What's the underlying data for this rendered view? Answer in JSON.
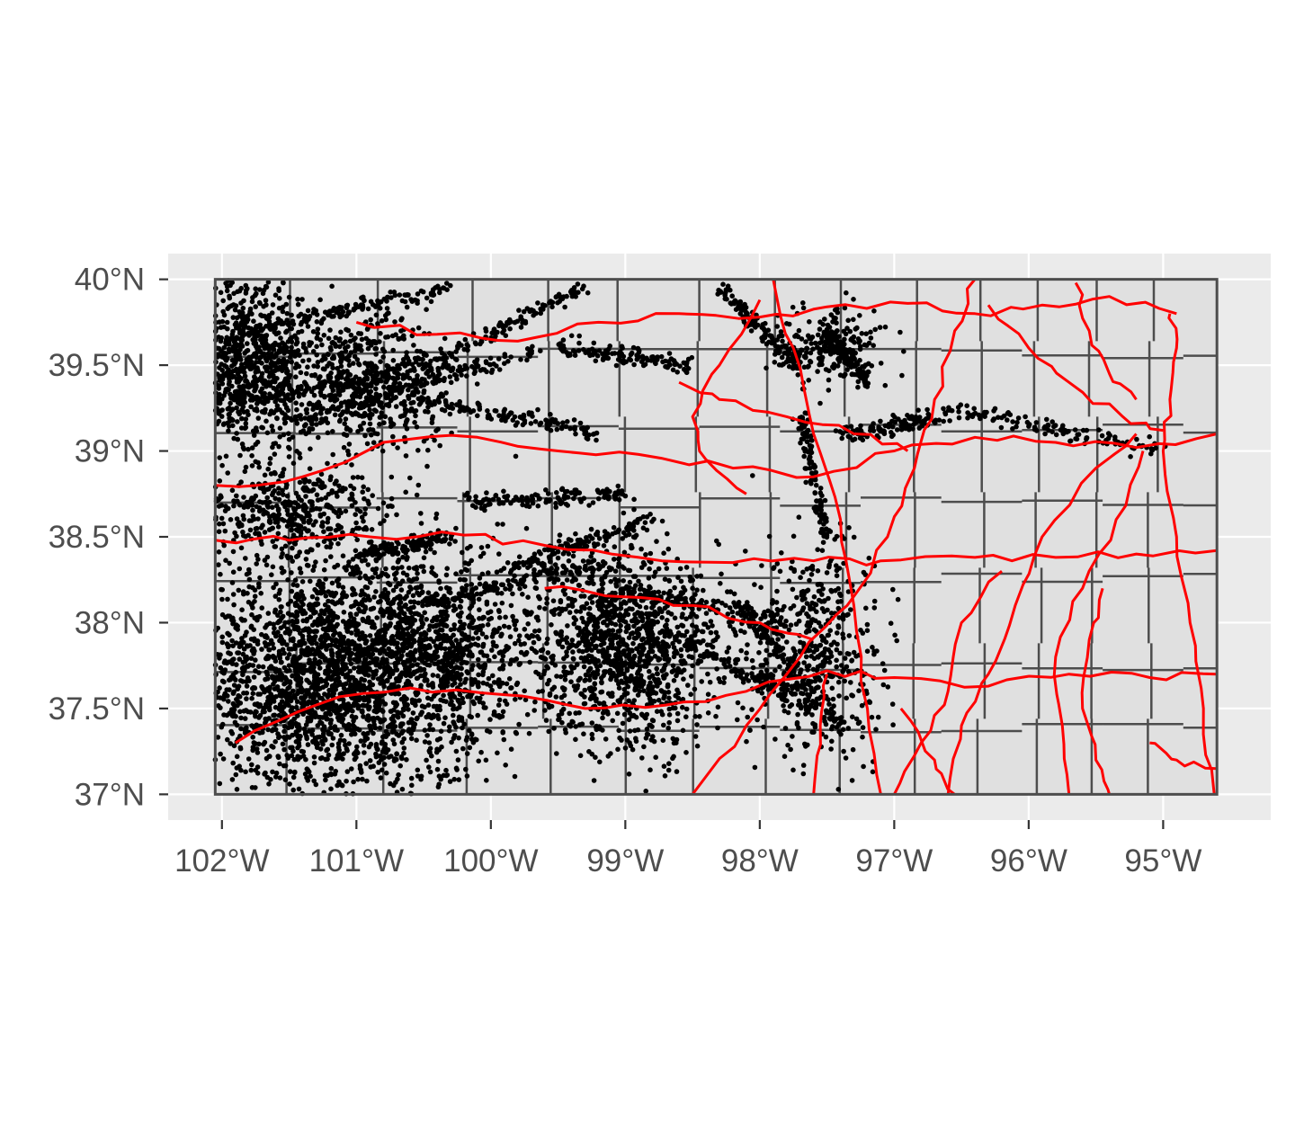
{
  "map": {
    "projection": "longitude-latitude",
    "background_panel_color": "#ebebeb",
    "gridline_color": "#ffffff",
    "county_fill_color": "#e0e0e0",
    "county_border_color": "#4d4d4d",
    "road_color": "#ff0000",
    "point_color": "#000000",
    "lon_range": [
      -102.4,
      -94.2
    ],
    "lat_range": [
      36.85,
      40.15
    ],
    "state_bounds": {
      "west": -102.05,
      "east": -94.6,
      "south": 37.0,
      "north": 40.0
    },
    "x_axis": {
      "ticks": [
        -102,
        -101,
        -100,
        -99,
        -98,
        -97,
        -96,
        -95
      ],
      "labels": [
        "102°W",
        "101°W",
        "100°W",
        "99°W",
        "98°W",
        "97°W",
        "96°W",
        "95°W"
      ]
    },
    "y_axis": {
      "ticks": [
        40,
        39.5,
        39,
        38.5,
        38,
        37.5,
        37
      ],
      "labels": [
        "40°N",
        "39.5°N",
        "39°N",
        "38.5°N",
        "38°N",
        "37.5°N",
        "37°N"
      ]
    },
    "county_lines_lon": [
      -101.48,
      -100.82,
      -100.17,
      -99.58,
      -99.03,
      -98.48,
      -97.92,
      -97.37,
      -96.84,
      -96.36,
      -95.94,
      -95.52,
      -95.08
    ],
    "county_lines_lat": [
      39.57,
      39.13,
      38.7,
      38.26,
      37.74,
      37.38
    ],
    "roads": [
      [
        [
          -102.05,
          38.48
        ],
        [
          -101.5,
          38.48
        ],
        [
          -100.9,
          38.5
        ],
        [
          -100.2,
          38.51
        ],
        [
          -99.6,
          38.45
        ],
        [
          -98.9,
          38.38
        ],
        [
          -98.2,
          38.35
        ],
        [
          -97.6,
          38.36
        ],
        [
          -97.1,
          38.36
        ],
        [
          -96.4,
          38.38
        ],
        [
          -95.8,
          38.38
        ],
        [
          -95.2,
          38.4
        ],
        [
          -94.6,
          38.42
        ]
      ],
      [
        [
          -102.05,
          38.8
        ],
        [
          -101.4,
          38.85
        ],
        [
          -100.8,
          39.05
        ],
        [
          -100.1,
          39.08
        ],
        [
          -99.5,
          39.0
        ],
        [
          -98.9,
          38.98
        ],
        [
          -98.2,
          38.9
        ],
        [
          -97.6,
          38.85
        ],
        [
          -97.0,
          39.0
        ],
        [
          -96.4,
          39.08
        ],
        [
          -95.8,
          39.05
        ],
        [
          -95.2,
          39.02
        ],
        [
          -94.6,
          39.1
        ]
      ],
      [
        [
          -101.0,
          39.75
        ],
        [
          -100.4,
          39.68
        ],
        [
          -99.8,
          39.64
        ],
        [
          -99.2,
          39.75
        ],
        [
          -98.6,
          39.8
        ],
        [
          -98.0,
          39.78
        ],
        [
          -97.5,
          39.84
        ],
        [
          -96.9,
          39.86
        ],
        [
          -96.4,
          39.8
        ],
        [
          -95.9,
          39.85
        ],
        [
          -95.4,
          39.9
        ],
        [
          -94.9,
          39.8
        ]
      ],
      [
        [
          -101.9,
          37.3
        ],
        [
          -101.3,
          37.52
        ],
        [
          -100.6,
          37.62
        ],
        [
          -99.9,
          37.58
        ],
        [
          -99.3,
          37.5
        ],
        [
          -98.7,
          37.52
        ],
        [
          -98.1,
          37.6
        ],
        [
          -97.5,
          37.72
        ],
        [
          -97.0,
          37.68
        ],
        [
          -96.3,
          37.63
        ],
        [
          -95.7,
          37.7
        ],
        [
          -95.1,
          37.68
        ],
        [
          -94.6,
          37.7
        ]
      ],
      [
        [
          -98.5,
          37.0
        ],
        [
          -98.1,
          37.4
        ],
        [
          -97.7,
          37.8
        ],
        [
          -97.35,
          38.1
        ],
        [
          -97.05,
          38.5
        ],
        [
          -96.85,
          38.9
        ],
        [
          -96.7,
          39.3
        ],
        [
          -96.55,
          39.7
        ],
        [
          -96.4,
          40.0
        ]
      ],
      [
        [
          -97.9,
          40.0
        ],
        [
          -97.75,
          39.6
        ],
        [
          -97.6,
          39.1
        ],
        [
          -97.4,
          38.6
        ],
        [
          -97.3,
          38.1
        ],
        [
          -97.2,
          37.5
        ],
        [
          -97.1,
          37.0
        ]
      ],
      [
        [
          -94.62,
          37.0
        ],
        [
          -94.7,
          37.5
        ],
        [
          -94.8,
          38.0
        ],
        [
          -94.9,
          38.5
        ],
        [
          -95.0,
          39.0
        ],
        [
          -94.95,
          39.3
        ],
        [
          -94.9,
          39.6
        ],
        [
          -94.95,
          39.8
        ]
      ],
      [
        [
          -95.7,
          37.0
        ],
        [
          -95.75,
          37.4
        ],
        [
          -95.8,
          37.8
        ],
        [
          -95.6,
          38.2
        ],
        [
          -95.35,
          38.6
        ],
        [
          -95.15,
          39.0
        ]
      ],
      [
        [
          -96.6,
          37.0
        ],
        [
          -96.5,
          37.4
        ],
        [
          -96.3,
          37.7
        ],
        [
          -96.1,
          38.1
        ],
        [
          -95.9,
          38.5
        ],
        [
          -95.5,
          38.9
        ],
        [
          -95.2,
          39.1
        ]
      ],
      [
        [
          -96.3,
          39.85
        ],
        [
          -96.0,
          39.6
        ],
        [
          -95.7,
          39.4
        ],
        [
          -95.3,
          39.2
        ],
        [
          -95.0,
          39.12
        ]
      ],
      [
        [
          -98.0,
          39.88
        ],
        [
          -98.3,
          39.5
        ],
        [
          -98.5,
          39.2
        ],
        [
          -98.4,
          38.95
        ],
        [
          -98.1,
          38.75
        ]
      ],
      [
        [
          -97.0,
          37.0
        ],
        [
          -96.8,
          37.3
        ],
        [
          -96.6,
          37.6
        ],
        [
          -96.5,
          38.0
        ],
        [
          -96.2,
          38.3
        ]
      ],
      [
        [
          -97.6,
          37.0
        ],
        [
          -97.55,
          37.4
        ],
        [
          -97.5,
          37.7
        ]
      ],
      [
        [
          -95.4,
          37.0
        ],
        [
          -95.5,
          37.2
        ],
        [
          -95.6,
          37.5
        ],
        [
          -95.55,
          37.9
        ],
        [
          -95.45,
          38.2
        ]
      ],
      [
        [
          -95.65,
          39.98
        ],
        [
          -95.55,
          39.7
        ],
        [
          -95.4,
          39.45
        ],
        [
          -95.2,
          39.3
        ]
      ],
      [
        [
          -99.6,
          38.2
        ],
        [
          -99.0,
          38.15
        ],
        [
          -98.5,
          38.1
        ],
        [
          -98.0,
          38.0
        ],
        [
          -97.6,
          37.9
        ]
      ],
      [
        [
          -98.6,
          39.4
        ],
        [
          -98.3,
          39.3
        ],
        [
          -97.8,
          39.2
        ],
        [
          -97.3,
          39.1
        ],
        [
          -96.9,
          39.0
        ]
      ],
      [
        [
          -96.95,
          37.5
        ],
        [
          -96.7,
          37.2
        ],
        [
          -96.55,
          37.0
        ]
      ],
      [
        [
          -95.1,
          37.3
        ],
        [
          -94.9,
          37.2
        ],
        [
          -94.6,
          37.15
        ]
      ]
    ],
    "point_clusters": [
      {
        "lon": -101.8,
        "lat": 39.5,
        "spread_lon": 0.25,
        "spread_lat": 0.25,
        "count": 900
      },
      {
        "lon": -100.9,
        "lat": 39.4,
        "spread_lon": 0.3,
        "spread_lat": 0.2,
        "count": 600
      },
      {
        "lon": -101.2,
        "lat": 37.7,
        "spread_lon": 0.55,
        "spread_lat": 0.35,
        "count": 2600
      },
      {
        "lon": -99.0,
        "lat": 37.85,
        "spread_lon": 0.35,
        "spread_lat": 0.3,
        "count": 1200
      },
      {
        "lon": -101.5,
        "lat": 38.65,
        "spread_lon": 0.35,
        "spread_lat": 0.12,
        "count": 400
      },
      {
        "lon": -97.6,
        "lat": 37.8,
        "spread_lon": 0.25,
        "spread_lat": 0.3,
        "count": 500
      },
      {
        "lon": -100.3,
        "lat": 37.9,
        "spread_lon": 0.35,
        "spread_lat": 0.25,
        "count": 600
      },
      {
        "lon": -97.5,
        "lat": 39.6,
        "spread_lon": 0.2,
        "spread_lat": 0.12,
        "count": 200
      }
    ],
    "point_streaks": [
      [
        [
          -101.8,
          39.7
        ],
        [
          -100.3,
          39.95
        ]
      ],
      [
        [
          -101.9,
          39.3
        ],
        [
          -100.2,
          39.5
        ]
      ],
      [
        [
          -101.5,
          39.15
        ],
        [
          -99.6,
          39.6
        ]
      ],
      [
        [
          -100.5,
          39.5
        ],
        [
          -99.3,
          39.95
        ]
      ],
      [
        [
          -99.5,
          39.6
        ],
        [
          -98.5,
          39.5
        ]
      ],
      [
        [
          -99.1,
          38.2
        ],
        [
          -97.8,
          38.0
        ]
      ],
      [
        [
          -98.9,
          38.0
        ],
        [
          -97.3,
          37.4
        ]
      ],
      [
        [
          -100.2,
          38.7
        ],
        [
          -99.0,
          38.75
        ]
      ],
      [
        [
          -101.0,
          38.4
        ],
        [
          -100.3,
          38.5
        ]
      ],
      [
        [
          -97.4,
          39.1
        ],
        [
          -96.6,
          39.2
        ]
      ],
      [
        [
          -96.6,
          39.25
        ],
        [
          -95.0,
          39.0
        ]
      ],
      [
        [
          -98.3,
          39.95
        ],
        [
          -97.7,
          39.5
        ]
      ],
      [
        [
          -97.5,
          39.7
        ],
        [
          -97.2,
          39.4
        ]
      ],
      [
        [
          -98.2,
          38.15
        ],
        [
          -97.4,
          37.4
        ]
      ],
      [
        [
          -97.7,
          39.2
        ],
        [
          -97.5,
          38.5
        ]
      ],
      [
        [
          -99.9,
          38.3
        ],
        [
          -98.8,
          38.6
        ]
      ],
      [
        [
          -100.5,
          38.1
        ],
        [
          -99.2,
          38.35
        ]
      ],
      [
        [
          -100.5,
          39.3
        ],
        [
          -99.2,
          39.1
        ]
      ]
    ]
  }
}
